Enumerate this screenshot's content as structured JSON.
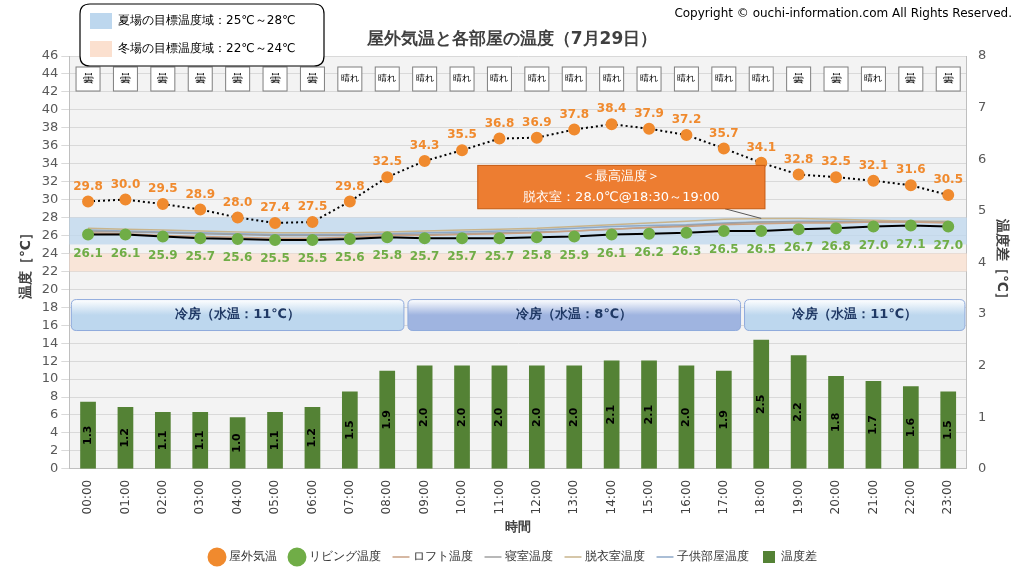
{
  "chart_data": {
    "type": "combo",
    "title": "屋外気温と各部屋の温度（7月29日）",
    "copyright": "Copyright © ouchi-information.com All Rights Reserved.",
    "x_label": "時間",
    "y_label": "温度［℃］",
    "y2_label": "温度差［℃］",
    "categories": [
      "00:00",
      "01:00",
      "02:00",
      "03:00",
      "04:00",
      "05:00",
      "06:00",
      "07:00",
      "08:00",
      "09:00",
      "10:00",
      "11:00",
      "12:00",
      "13:00",
      "14:00",
      "15:00",
      "16:00",
      "17:00",
      "18:00",
      "19:00",
      "20:00",
      "21:00",
      "22:00",
      "23:00"
    ],
    "ylim": [
      0,
      46
    ],
    "yticks": [
      0,
      2,
      4,
      6,
      8,
      10,
      12,
      14,
      16,
      18,
      20,
      22,
      24,
      26,
      28,
      30,
      32,
      34,
      36,
      38,
      40,
      42,
      44,
      46
    ],
    "y2lim": [
      0,
      8
    ],
    "y2ticks": [
      0,
      1,
      2,
      3,
      4,
      5,
      6,
      7,
      8
    ],
    "grid": true,
    "legend": "bottom",
    "series": [
      {
        "name": "温度差",
        "type": "bar",
        "axis": "y2",
        "color": "#548235",
        "data_labels": true,
        "values": [
          1.3,
          1.2,
          1.1,
          1.1,
          1.0,
          1.1,
          1.2,
          1.5,
          1.9,
          2.0,
          2.0,
          2.0,
          2.0,
          2.0,
          2.1,
          2.1,
          2.0,
          1.9,
          2.5,
          2.2,
          1.8,
          1.7,
          1.6,
          1.5
        ],
        "value_labels": [
          "1.3",
          "1.2",
          "1.1",
          "1.1",
          "1.0",
          "1.1",
          "1.2",
          "1.5",
          "1.9",
          "2.0",
          "2.0",
          "2.0",
          "2.0",
          "2.0",
          "2.1",
          "2.1",
          "2.0",
          "1.9",
          "2.5",
          "2.2",
          "1.8",
          "1.7",
          "1.6",
          "1.5"
        ]
      },
      {
        "name": "屋外気温",
        "type": "line",
        "color": "#f08a2e",
        "marker": "circle",
        "line_style": "dotted",
        "data_labels": true,
        "values": [
          29.8,
          30.0,
          29.5,
          28.9,
          28.0,
          27.4,
          27.5,
          29.8,
          32.5,
          34.3,
          35.5,
          36.8,
          36.9,
          37.8,
          38.4,
          37.9,
          37.2,
          35.7,
          34.1,
          32.8,
          32.5,
          32.1,
          31.6,
          30.5
        ],
        "value_labels": [
          "29.8",
          "30.0",
          "29.5",
          "28.9",
          "28.0",
          "27.4",
          "27.5",
          "29.8",
          "32.5",
          "34.3",
          "35.5",
          "36.8",
          "36.9",
          "37.8",
          "38.4",
          "37.9",
          "37.2",
          "35.7",
          "34.1",
          "32.8",
          "32.5",
          "32.1",
          "31.6",
          "30.5"
        ]
      },
      {
        "name": "リビング温度",
        "type": "line",
        "color": "#70ad47",
        "marker": "circle",
        "line_style": "solid",
        "data_labels": true,
        "values": [
          26.1,
          26.1,
          25.9,
          25.7,
          25.6,
          25.5,
          25.5,
          25.6,
          25.8,
          25.7,
          25.7,
          25.7,
          25.8,
          25.9,
          26.1,
          26.2,
          26.3,
          26.5,
          26.5,
          26.7,
          26.8,
          27.0,
          27.1,
          27.0
        ],
        "value_labels": [
          "26.1",
          "26.1",
          "25.9",
          "25.7",
          "25.6",
          "25.5",
          "25.5",
          "25.6",
          "25.8",
          "25.7",
          "25.7",
          "25.7",
          "25.8",
          "25.9",
          "26.1",
          "26.2",
          "26.3",
          "26.5",
          "26.5",
          "26.7",
          "26.8",
          "27.0",
          "27.1",
          "27.0"
        ]
      },
      {
        "name": "ロフト温度",
        "type": "line",
        "color": "#c9a184",
        "marker": "none",
        "line_style": "solid",
        "values": [
          26.3,
          26.2,
          26.0,
          25.9,
          25.8,
          25.7,
          25.7,
          25.8,
          26.0,
          26.0,
          26.1,
          26.2,
          26.3,
          26.5,
          26.7,
          26.9,
          27.0,
          27.2,
          27.3,
          27.4,
          27.4,
          27.5,
          27.5,
          27.4
        ]
      },
      {
        "name": "寝室温度",
        "type": "line",
        "color": "#a0a0a0",
        "marker": "none",
        "line_style": "solid",
        "values": [
          26.5,
          26.4,
          26.3,
          26.2,
          26.1,
          26.0,
          26.0,
          26.0,
          26.1,
          26.1,
          26.2,
          26.3,
          26.4,
          26.5,
          26.7,
          26.9,
          27.1,
          27.3,
          27.5,
          27.5,
          27.5,
          27.5,
          27.5,
          27.5
        ]
      },
      {
        "name": "脱衣室温度",
        "type": "line",
        "color": "#c8b48c",
        "marker": "none",
        "line_style": "solid",
        "values": [
          26.8,
          26.7,
          26.6,
          26.5,
          26.4,
          26.3,
          26.3,
          26.3,
          26.4,
          26.5,
          26.6,
          26.7,
          26.8,
          27.0,
          27.2,
          27.4,
          27.6,
          27.8,
          27.9,
          27.9,
          27.8,
          27.7,
          27.6,
          27.6
        ]
      },
      {
        "name": "子供部屋温度",
        "type": "line",
        "color": "#8ea9c8",
        "marker": "none",
        "line_style": "solid",
        "values": [
          26.6,
          26.5,
          26.4,
          26.3,
          26.2,
          26.1,
          26.1,
          26.1,
          26.2,
          26.3,
          26.4,
          26.5,
          26.6,
          26.8,
          27.0,
          27.1,
          27.2,
          27.4,
          27.5,
          27.6,
          27.6,
          27.6,
          27.6,
          27.5
        ]
      }
    ],
    "bands": [
      {
        "label": "夏場の目標温度域：25℃～28℃",
        "range": [
          25,
          28
        ],
        "color": "#bdd7ee"
      },
      {
        "label": "冬場の目標温度域：22℃～24℃",
        "range": [
          22,
          24
        ],
        "color": "#fbe0cf"
      }
    ],
    "weather": [
      "曇",
      "曇",
      "曇",
      "曇",
      "曇",
      "曇",
      "曇",
      "晴れ",
      "晴れ",
      "晴れ",
      "晴れ",
      "晴れ",
      "晴れ",
      "晴れ",
      "晴れ",
      "晴れ",
      "晴れ",
      "晴れ",
      "晴れ",
      "曇",
      "曇",
      "晴れ",
      "曇",
      "曇"
    ],
    "modes": [
      {
        "label": "冷房（水温：11℃）",
        "from": "00:00",
        "to": "08:00",
        "color": "#bdd7ee"
      },
      {
        "label": "冷房（水温：8℃）",
        "from": "09:00",
        "to": "17:00",
        "color": "#9fb4e0"
      },
      {
        "label": "冷房（水温：11℃）",
        "from": "18:00",
        "to": "23:00",
        "color": "#bdd7ee"
      }
    ],
    "annotation": {
      "lines": [
        "＜最高温度＞",
        "脱衣室：28.0℃@18:30～19:00"
      ],
      "series": "脱衣室温度"
    }
  }
}
